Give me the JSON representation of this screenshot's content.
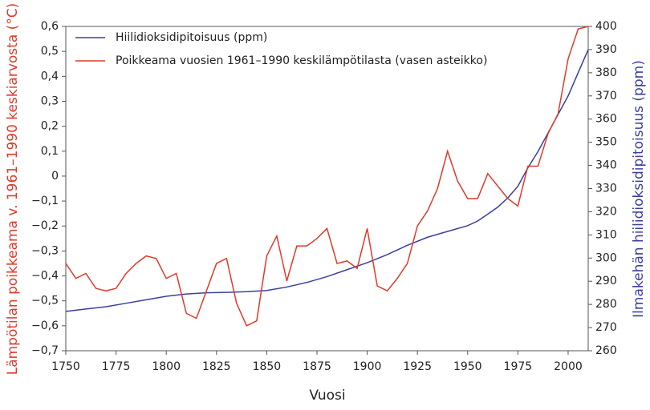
{
  "chart_data": {
    "type": "line",
    "x_label": "Vuosi",
    "y_label": "Lämpötilan poikkeama v. 1961–1990 keskiarvosta (°C)",
    "y2_label": "Ilmakehän hiilidioksidipitoisuus (ppm)",
    "xlim": [
      1750,
      2010
    ],
    "xticks": [
      1750,
      1775,
      1800,
      1825,
      1850,
      1875,
      1900,
      1925,
      1950,
      1975,
      2000
    ],
    "ylim": [
      -0.7,
      0.6
    ],
    "yticks": [
      {
        "value": -0.7,
        "label": "−0,7"
      },
      {
        "value": -0.6,
        "label": "−0,6"
      },
      {
        "value": -0.5,
        "label": "−0,5"
      },
      {
        "value": -0.4,
        "label": "−0,4"
      },
      {
        "value": -0.3,
        "label": "−0,3"
      },
      {
        "value": -0.2,
        "label": "−0,2"
      },
      {
        "value": -0.1,
        "label": "−0,1"
      },
      0,
      {
        "value": 0.1,
        "label": "0,1"
      },
      {
        "value": 0.2,
        "label": "0,2"
      },
      {
        "value": 0.3,
        "label": "0,3"
      },
      {
        "value": 0.4,
        "label": "0,4"
      },
      {
        "value": 0.5,
        "label": "0,5"
      },
      {
        "value": 0.6,
        "label": "0,6"
      }
    ],
    "y2lim": [
      260,
      400
    ],
    "y2ticks": [
      260,
      270,
      280,
      290,
      300,
      310,
      320,
      330,
      340,
      350,
      360,
      370,
      380,
      390,
      400
    ],
    "legend": "upper left",
    "series": [
      {
        "name": "Hiilidioksidipitoisuus (ppm)",
        "color": "#3a3fa0",
        "axis": "y2",
        "x": [
          1750,
          1760,
          1770,
          1780,
          1790,
          1800,
          1810,
          1820,
          1830,
          1840,
          1850,
          1860,
          1870,
          1880,
          1890,
          1900,
          1910,
          1920,
          1930,
          1940,
          1950,
          1955,
          1960,
          1965,
          1970,
          1975,
          1980,
          1985,
          1990,
          1995,
          2000,
          2005,
          2010
        ],
        "values": [
          277,
          278,
          279,
          280.5,
          282,
          283.5,
          284.5,
          285,
          285.2,
          285.5,
          286,
          287.5,
          289.5,
          292,
          295,
          298,
          301.5,
          305.5,
          309,
          311.5,
          314,
          316,
          319,
          322,
          326,
          331,
          339,
          346,
          354,
          362,
          370,
          380,
          390
        ]
      },
      {
        "name": "Poikkeama vuosien 1961–1990 keskilämpötilasta (vasen asteikko)",
        "color": "#e03a2a",
        "x": [
          1750,
          1755,
          1760,
          1765,
          1770,
          1775,
          1780,
          1785,
          1790,
          1795,
          1800,
          1805,
          1810,
          1815,
          1820,
          1825,
          1830,
          1835,
          1840,
          1845,
          1850,
          1855,
          1860,
          1865,
          1870,
          1875,
          1880,
          1885,
          1890,
          1895,
          1900,
          1905,
          1910,
          1915,
          1920,
          1925,
          1930,
          1935,
          1940,
          1945,
          1950,
          1955,
          1960,
          1965,
          1970,
          1975,
          1980,
          1985,
          1990,
          1995,
          2000,
          2005,
          2010
        ],
        "values": [
          -0.35,
          -0.41,
          -0.39,
          -0.45,
          -0.46,
          -0.45,
          -0.39,
          -0.35,
          -0.32,
          -0.33,
          -0.41,
          -0.39,
          -0.55,
          -0.57,
          -0.46,
          -0.35,
          -0.33,
          -0.51,
          -0.6,
          -0.58,
          -0.32,
          -0.24,
          -0.42,
          -0.28,
          -0.28,
          -0.25,
          -0.21,
          -0.35,
          -0.34,
          -0.37,
          -0.21,
          -0.44,
          -0.46,
          -0.41,
          -0.35,
          -0.2,
          -0.14,
          -0.05,
          0.1,
          -0.02,
          -0.09,
          -0.09,
          0.01,
          -0.04,
          -0.09,
          -0.12,
          0.04,
          0.04,
          0.17,
          0.25,
          0.47,
          0.59,
          0.6
        ]
      }
    ]
  }
}
